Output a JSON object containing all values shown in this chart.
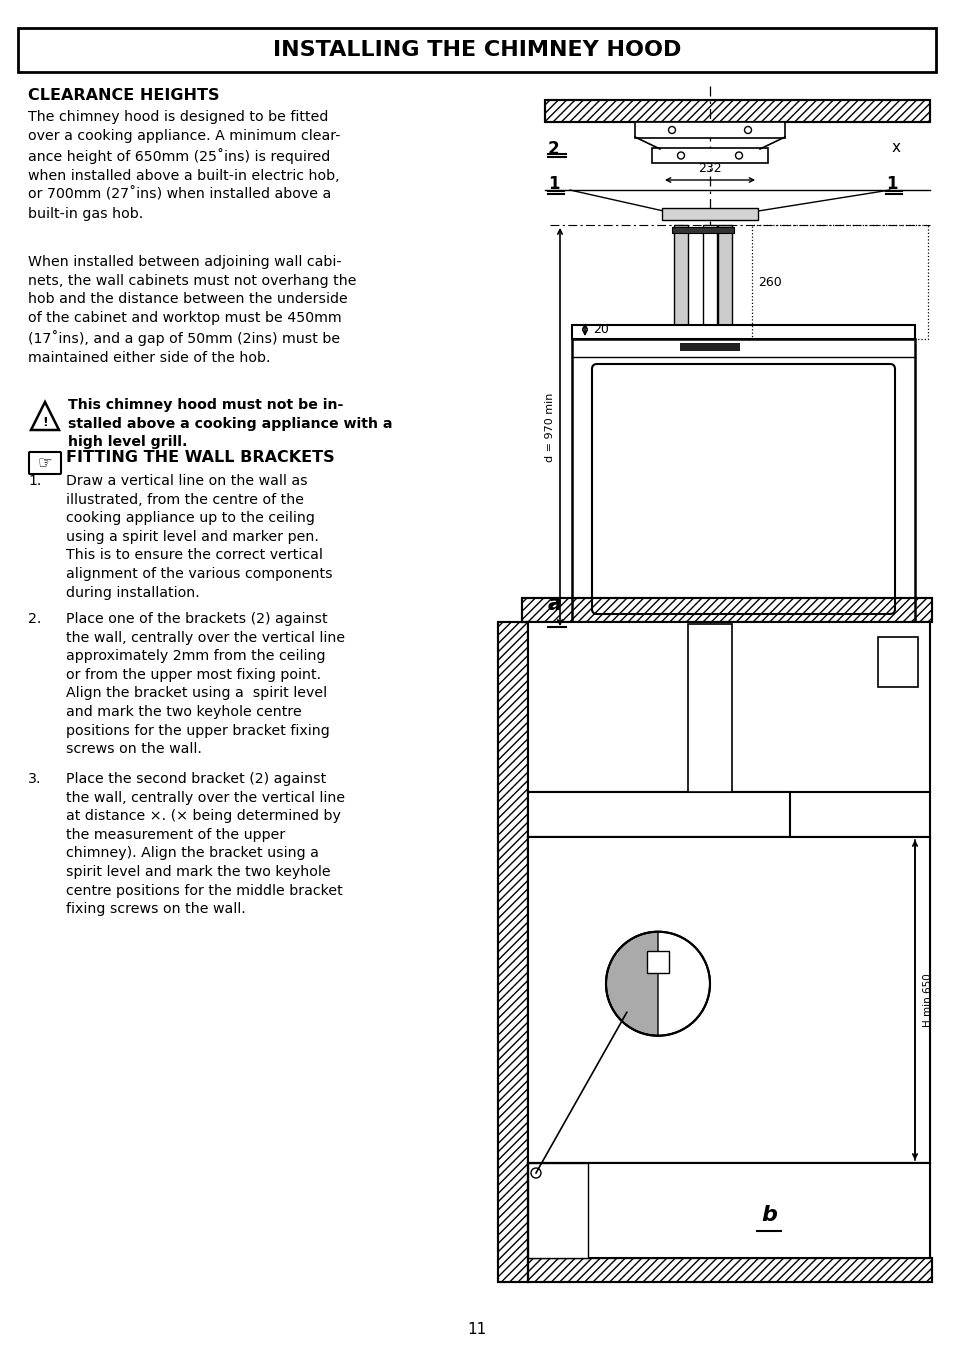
{
  "title": "INSTALLING THE CHIMNEY HOOD",
  "page_number": "11",
  "bg": "#ffffff",
  "section1_title": "CLEARANCE HEIGHTS",
  "para1_line1": "The chimney hood is designed to be fitted",
  "para1_line2": "over a cooking appliance. A minimum clear-",
  "para1_line3": "ance height of 650mm (25˚ins) is required",
  "para1_line4": "when installed above a built-in electric hob,",
  "para1_line5": "or 700mm (27˚ins) when installed above a",
  "para1_line6": "built-in gas hob.",
  "para2_line1": "When installed between adjoining wall cabi-",
  "para2_line2": "nets, the wall cabinets must not overhang the",
  "para2_line3": "hob and the distance between the underside",
  "para2_line4": "of the cabinet and worktop must be 450mm",
  "para2_line5": "(17˚ins), and a gap of 50mm (2ins) must be",
  "para2_line6": "maintained either side of the hob.",
  "warn_line1": "This chimney hood must not be in-",
  "warn_line2": "stalled above a cooking appliance with a",
  "warn_line3": "high level grill.",
  "s2_title": "FITTING THE WALL BRACKETS",
  "step1_num": "1.",
  "step1_text": "Draw a vertical line on the wall as\nillustrated, from the centre of the\ncooking appliance up to the ceiling\nusing a spirit level and marker pen.\nThis is to ensure the correct vertical\nalignment of the various components\nduring installation.",
  "step2_num": "2.",
  "step2_text": "Place one of the brackets (2) against\nthe wall, centrally over the vertical line\napproximately 2mm from the ceiling\nor from the upper most fixing point.\n\nAlign the bracket using a  spirit level\nand mark the two keyhole centre\npositions for the upper bracket fixing\nscrews on the wall.",
  "step3_num": "3.",
  "step3_text": "Place the second bracket (2) against\nthe wall, centrally over the vertical line\nat distance X. (X being determined by\nthe measurement of the upper\nchimney). Align the bracket using a\nspirit level and mark the two keyhole\ncentre positions for the middle bracket\nfixing screws on the wall."
}
